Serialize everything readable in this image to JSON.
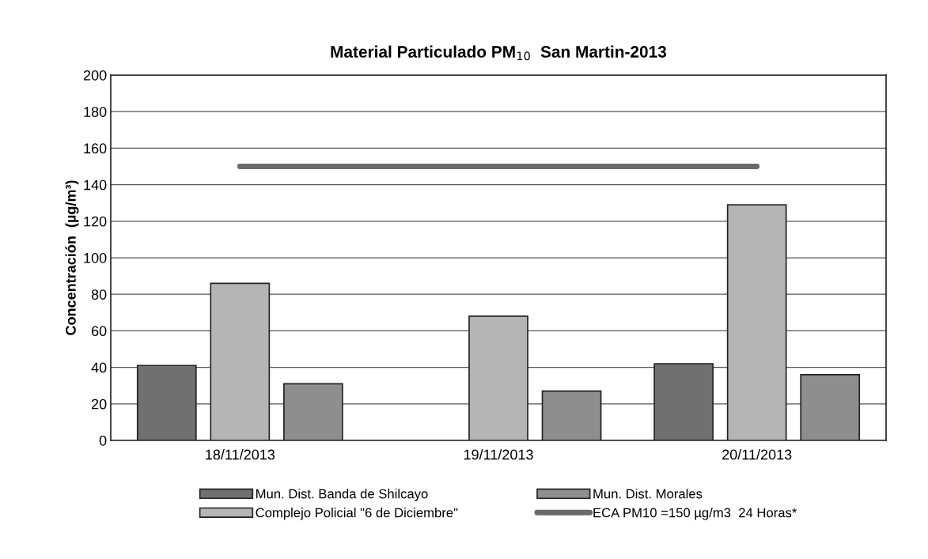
{
  "chart_data": {
    "type": "bar",
    "title": "Material Particulado PM$_{10}$  San Martin-2013",
    "ylabel": "Concentración  (µg/m³)",
    "categories": [
      "18/11/2013",
      "19/11/2013",
      "20/11/2013"
    ],
    "series": [
      {
        "name": "Mun. Dist. Banda de Shilcayo",
        "color": "#707070",
        "values": [
          41,
          null,
          42
        ]
      },
      {
        "name": "Complejo Policial \"6 de Diciembre\"",
        "color": "#b5b5b5",
        "values": [
          86,
          68,
          129
        ]
      },
      {
        "name": "Mun. Dist. Morales",
        "color": "#8e8e8e",
        "values": [
          31,
          27,
          36
        ]
      },
      {
        "name": "ECA PM10 =150 µg/m3  24 Horas*",
        "type": "line",
        "color": "#6a6a6a",
        "values": [
          150,
          150,
          150
        ]
      }
    ],
    "ylim": [
      0,
      200
    ],
    "yticks": [
      0,
      20,
      40,
      60,
      80,
      100,
      120,
      140,
      160,
      180,
      200
    ],
    "grid": "y",
    "legend": "bottom"
  }
}
